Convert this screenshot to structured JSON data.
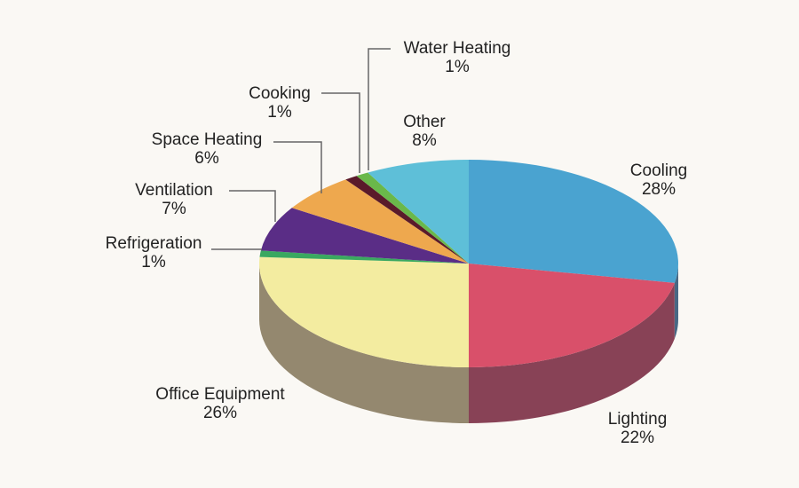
{
  "chart_data": {
    "type": "pie",
    "categories": [
      "Cooling",
      "Lighting",
      "Office Equipment",
      "Refrigeration",
      "Ventilation",
      "Space Heating",
      "Cooking",
      "Water Heating",
      "Other"
    ],
    "values": [
      28,
      22,
      26,
      1,
      7,
      6,
      1,
      1,
      8
    ],
    "value_labels": [
      "28%",
      "22%",
      "26%",
      "1%",
      "7%",
      "6%",
      "1%",
      "1%",
      "8%"
    ],
    "colors": [
      "#4aa3d0",
      "#d9506a",
      "#f3eca0",
      "#3aa860",
      "#5a2d86",
      "#eea84e",
      "#5a1a2a",
      "#6ab84a",
      "#5ebfd8"
    ]
  }
}
